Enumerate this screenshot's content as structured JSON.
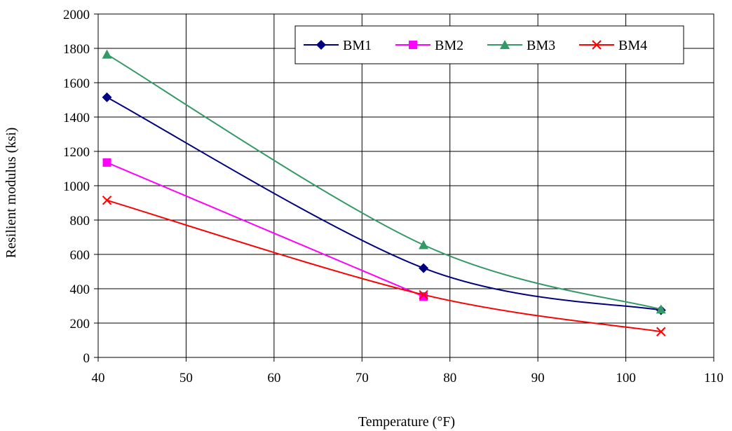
{
  "chart_data": {
    "type": "line",
    "title": "",
    "xlabel": "Temperature (°F)",
    "ylabel": "Resilient modulus (ksi)",
    "xlim": [
      40,
      110
    ],
    "ylim": [
      0,
      2000
    ],
    "xticks": [
      40,
      50,
      60,
      70,
      80,
      90,
      100,
      110
    ],
    "yticks": [
      0,
      200,
      400,
      600,
      800,
      1000,
      1200,
      1400,
      1600,
      1800,
      2000
    ],
    "grid": true,
    "smooth": true,
    "legend_position": "top-right",
    "series": [
      {
        "name": "BM1",
        "color": "#000080",
        "marker": "diamond",
        "x": [
          41,
          77,
          104
        ],
        "y": [
          1515,
          520,
          275
        ]
      },
      {
        "name": "BM2",
        "color": "#ff00ff",
        "marker": "square",
        "x": [
          41,
          77
        ],
        "y": [
          1135,
          355
        ]
      },
      {
        "name": "BM3",
        "color": "#339966",
        "marker": "triangle",
        "x": [
          41,
          77,
          104
        ],
        "y": [
          1765,
          655,
          280
        ]
      },
      {
        "name": "BM4",
        "color": "#ff0000",
        "marker": "x",
        "x": [
          41,
          77,
          104
        ],
        "y": [
          915,
          365,
          150
        ]
      }
    ]
  }
}
